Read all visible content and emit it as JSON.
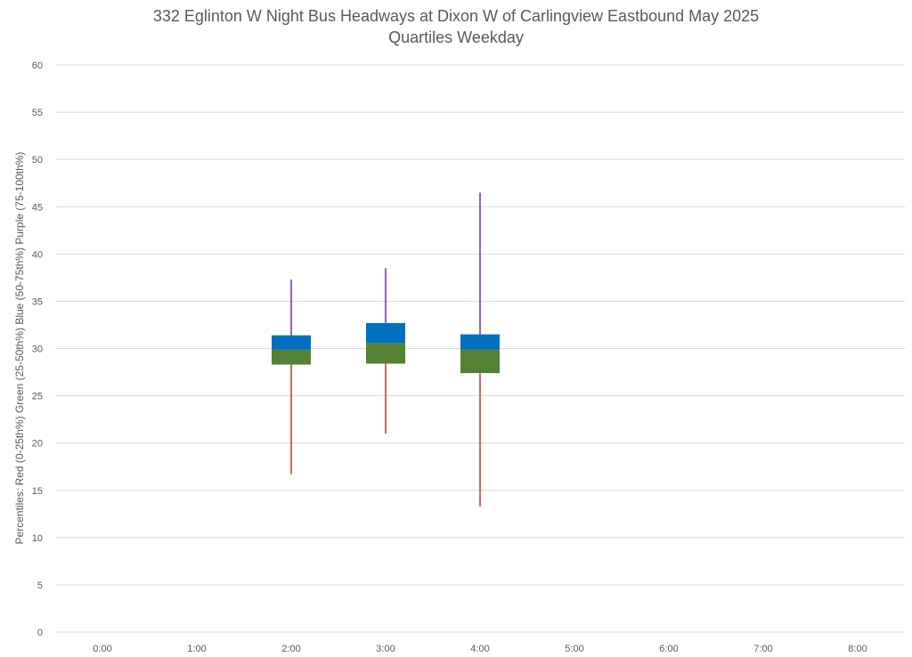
{
  "chart_data": {
    "type": "box",
    "title": "332 Eglinton W Night Bus Headways at Dixon W of Carlingview Eastbound May 2025",
    "subtitle": "Quartiles Weekday",
    "ylabel": "Percentiles:  Red (0-25th%)  Green (25-50th%)  Blue (50-75th%)  Purple (75-100th%)",
    "xlabel": "",
    "categories": [
      "0:00",
      "1:00",
      "2:00",
      "3:00",
      "4:00",
      "5:00",
      "6:00",
      "7:00",
      "8:00"
    ],
    "ylim": [
      0,
      60
    ],
    "yticks": [
      0,
      5,
      10,
      15,
      20,
      25,
      30,
      35,
      40,
      45,
      50,
      55,
      60
    ],
    "grid": true,
    "boxes": [
      {
        "category": "2:00",
        "min": 16.7,
        "q1": 28.3,
        "median": 29.9,
        "q3": 31.4,
        "max": 37.3
      },
      {
        "category": "3:00",
        "min": 21.0,
        "q1": 28.4,
        "median": 30.6,
        "q3": 32.7,
        "max": 38.5
      },
      {
        "category": "4:00",
        "min": 13.3,
        "q1": 27.4,
        "median": 29.9,
        "q3": 31.5,
        "max": 46.5
      }
    ],
    "colors": {
      "lower_whisker": "#c0392b",
      "lower_box": "#548235",
      "upper_box": "#0070c0",
      "upper_whisker": "#7030a0",
      "grid": "#d9d9d9"
    }
  }
}
